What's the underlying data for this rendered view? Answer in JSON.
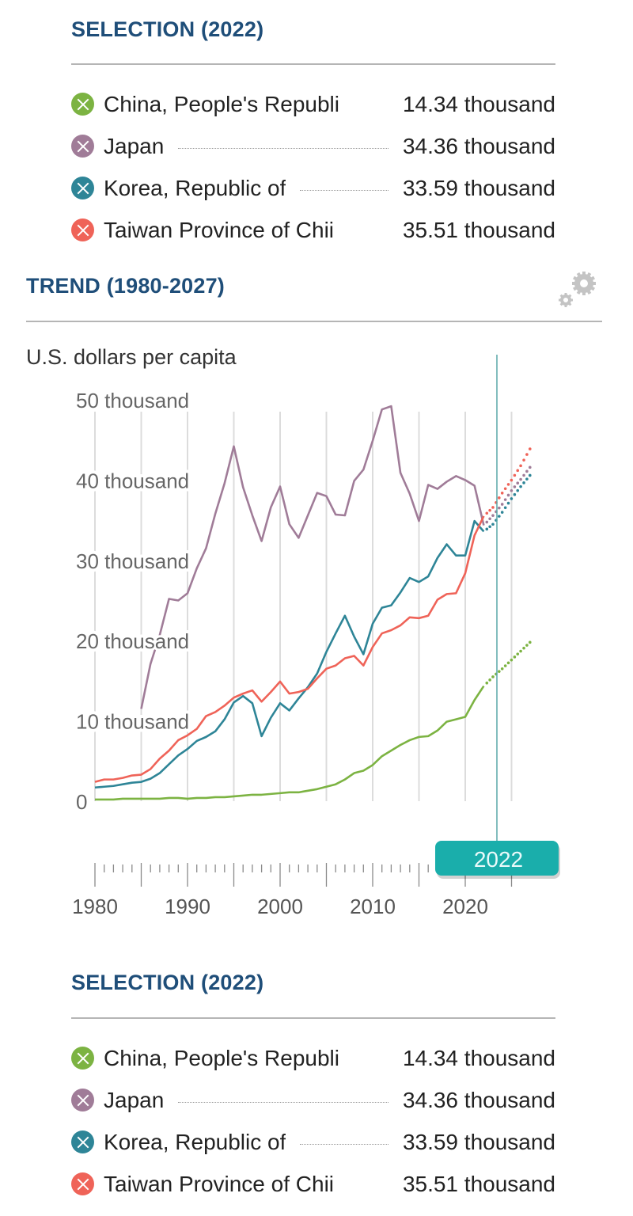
{
  "selection_top": {
    "title": "SELECTION (2022)",
    "items": [
      {
        "name": "China, People's Republi",
        "value": "14.34 thousand",
        "color": "#7cb342",
        "leader": false
      },
      {
        "name": "Japan",
        "value": "34.36 thousand",
        "color": "#a07c98",
        "leader": true
      },
      {
        "name": "Korea, Republic of",
        "value": "33.59 thousand",
        "color": "#2e8597",
        "leader": true
      },
      {
        "name": "Taiwan Province of Chii",
        "value": "35.51 thousand",
        "color": "#ef6358",
        "leader": false
      }
    ]
  },
  "trend": {
    "title": "TREND (1980-2027)",
    "settings_icon": "gear-icon",
    "selected_year": "2022",
    "selected_color": "#1aaeab"
  },
  "chart_data": {
    "type": "line",
    "title": "TREND (1980-2027)",
    "ylabel": "U.S. dollars per capita",
    "xlabel": "",
    "xlim": [
      1980,
      2027
    ],
    "ylim": [
      0,
      50
    ],
    "y_ticks": [
      0,
      10,
      20,
      30,
      40,
      50
    ],
    "y_tick_labels": [
      "0",
      "10 thousand",
      "20 thousand",
      "30 thousand",
      "40 thousand",
      "50 thousand"
    ],
    "x_tick_labels": [
      "1980",
      "1990",
      "2000",
      "2010",
      "2020"
    ],
    "x_ticks": [
      1980,
      1990,
      2000,
      2010,
      2020
    ],
    "gridlines_x": [
      1980,
      1985,
      1990,
      1995,
      2000,
      2005,
      2010,
      2015,
      2020,
      2025
    ],
    "grid": true,
    "unit": "thousand U.S. dollars per capita",
    "projection_start": 2022,
    "selected_year": 2022,
    "x": [
      1980,
      1981,
      1982,
      1983,
      1984,
      1985,
      1986,
      1987,
      1988,
      1989,
      1990,
      1991,
      1992,
      1993,
      1994,
      1995,
      1996,
      1997,
      1998,
      1999,
      2000,
      2001,
      2002,
      2003,
      2004,
      2005,
      2006,
      2007,
      2008,
      2009,
      2010,
      2011,
      2012,
      2013,
      2014,
      2015,
      2016,
      2017,
      2018,
      2019,
      2020,
      2021,
      2022,
      2023,
      2024,
      2025,
      2026,
      2027
    ],
    "series": [
      {
        "name": "China, People's Republic of",
        "color": "#7cb342",
        "values": [
          0.2,
          0.2,
          0.2,
          0.3,
          0.3,
          0.3,
          0.3,
          0.3,
          0.4,
          0.4,
          0.3,
          0.4,
          0.4,
          0.5,
          0.5,
          0.6,
          0.7,
          0.8,
          0.8,
          0.9,
          1.0,
          1.1,
          1.1,
          1.3,
          1.5,
          1.8,
          2.1,
          2.7,
          3.5,
          3.8,
          4.5,
          5.6,
          6.3,
          7.0,
          7.6,
          8.0,
          8.1,
          8.8,
          9.9,
          10.2,
          10.5,
          12.6,
          14.34,
          15.5,
          16.5,
          17.6,
          18.7,
          19.8
        ]
      },
      {
        "name": "Japan",
        "color": "#a07c98",
        "values": [
          null,
          null,
          null,
          null,
          null,
          11.5,
          17.1,
          20.7,
          25.2,
          25.0,
          25.9,
          29.0,
          31.5,
          35.8,
          39.6,
          44.2,
          39.1,
          35.6,
          32.4,
          36.6,
          39.2,
          34.5,
          32.8,
          35.6,
          38.4,
          38.0,
          35.7,
          35.6,
          39.9,
          41.3,
          44.9,
          48.8,
          49.2,
          40.9,
          38.3,
          34.9,
          39.4,
          38.9,
          39.8,
          40.5,
          40.0,
          39.3,
          34.36,
          35.6,
          37.0,
          38.7,
          40.1,
          41.6
        ]
      },
      {
        "name": "Korea, Republic of",
        "color": "#2e8597",
        "values": [
          1.7,
          1.8,
          1.9,
          2.1,
          2.3,
          2.4,
          2.8,
          3.5,
          4.6,
          5.7,
          6.5,
          7.5,
          8.0,
          8.7,
          10.2,
          12.3,
          13.1,
          12.2,
          8.1,
          10.4,
          12.2,
          11.3,
          12.8,
          14.2,
          15.9,
          18.6,
          20.9,
          23.1,
          20.5,
          18.3,
          22.1,
          24.1,
          24.4,
          26.0,
          27.8,
          27.3,
          28.0,
          30.3,
          32.0,
          30.6,
          30.6,
          34.9,
          33.59,
          34.5,
          36.0,
          37.7,
          39.2,
          40.6
        ]
      },
      {
        "name": "Taiwan Province of China",
        "color": "#ef6358",
        "values": [
          2.4,
          2.7,
          2.7,
          2.9,
          3.2,
          3.3,
          4.0,
          5.3,
          6.3,
          7.6,
          8.2,
          9.0,
          10.6,
          11.1,
          11.9,
          12.9,
          13.4,
          13.8,
          12.4,
          13.6,
          14.9,
          13.4,
          13.6,
          14.0,
          15.3,
          16.5,
          16.9,
          17.8,
          18.1,
          16.9,
          19.2,
          20.9,
          21.3,
          21.9,
          22.9,
          22.8,
          23.1,
          25.1,
          25.8,
          25.9,
          28.4,
          33.1,
          35.51,
          36.6,
          38.4,
          40.0,
          41.8,
          43.9
        ]
      }
    ]
  },
  "selection_bottom": {
    "title": "SELECTION (2022)",
    "items": [
      {
        "name": "China, People's Republi",
        "value": "14.34 thousand",
        "color": "#7cb342",
        "leader": false
      },
      {
        "name": "Japan",
        "value": "34.36 thousand",
        "color": "#a07c98",
        "leader": true
      },
      {
        "name": "Korea, Republic of",
        "value": "33.59 thousand",
        "color": "#2e8597",
        "leader": true
      },
      {
        "name": "Taiwan Province of Chii",
        "value": "35.51 thousand",
        "color": "#ef6358",
        "leader": false
      }
    ]
  }
}
